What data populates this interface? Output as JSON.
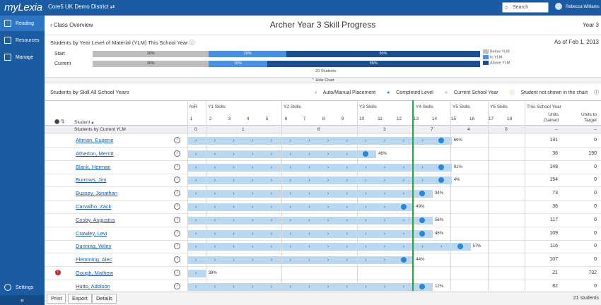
{
  "topbar": {
    "logo": "myLexia",
    "district": "Core5 UK Demo District ⇄",
    "search": "Search",
    "user": "Rebecca Williams"
  },
  "sidebar": {
    "items": [
      {
        "label": "Reading"
      },
      {
        "label": "Resources"
      },
      {
        "label": "Manage"
      }
    ],
    "settings": "Settings",
    "collapse": "«"
  },
  "header": {
    "back": "Class Overview",
    "title": "Archer Year 3 Skill Progress",
    "year": "Year 3"
  },
  "ylm": {
    "title": "Students by Year Level of Material (YLM) This School Year",
    "as_of": "As of Feb 1, 2013",
    "rows": [
      {
        "label": "Start",
        "below": "30%",
        "in": "20%",
        "above": "50%",
        "below_v": 30,
        "in_v": 20,
        "above_v": 50
      },
      {
        "label": "Current",
        "below": "30%",
        "in": "15%",
        "above": "55%",
        "below_v": 30,
        "in_v": 15,
        "above_v": 55
      }
    ],
    "legend": [
      "Below YLM",
      "In YLM",
      "Above YLM"
    ],
    "students": "20 Students",
    "hide": "Hide Chart"
  },
  "skills": {
    "title": "Students by Skill All School Years",
    "legend": [
      "Auto/Manual Placement",
      "Completed Level",
      "Current School Year",
      "Student not shown in the chart"
    ],
    "headers": {
      "nr": "N/R",
      "student": "Student",
      "this_year": "This School Year",
      "units_gained": "Units Gained",
      "units_target": "Units to Target"
    },
    "groups": [
      "Y1 Skills",
      "Y2 Skills",
      "Y3 Skills",
      "Y4 Skills",
      "Y5 Skills",
      "Y6 Skills"
    ],
    "cols": [
      "1",
      "2",
      "3",
      "4",
      "5",
      "6",
      "7",
      "8",
      "9",
      "10",
      "11",
      "12",
      "13",
      "14",
      "15",
      "16",
      "17",
      "18"
    ],
    "cym": {
      "label": "Students by Current YLM",
      "vals": [
        "0",
        "1",
        "6",
        "3",
        "7",
        "4",
        "0"
      ],
      "gained": "--",
      "target": "--"
    }
  },
  "students": [
    {
      "name": "Altman, Eugene",
      "pct": "69%",
      "lvl": 14,
      "gained": "131",
      "target": "0"
    },
    {
      "name": "Atherton, Merritt",
      "pct": "46%",
      "lvl": 10,
      "gained": "36",
      "target": "190"
    },
    {
      "name": "Blank, Herman",
      "pct": "91%",
      "lvl": 14,
      "gained": "148",
      "target": "0"
    },
    {
      "name": "Burrows, Jim",
      "pct": "4%",
      "lvl": 14,
      "gained": "154",
      "target": "0"
    },
    {
      "name": "Bussey, Jonathan",
      "pct": "94%",
      "lvl": 13,
      "gained": "73",
      "target": "0"
    },
    {
      "name": "Carvalho, Zack",
      "pct": "49%",
      "lvl": 12,
      "gained": "36",
      "target": "0"
    },
    {
      "name": "Cosby, Augustus",
      "pct": "56%",
      "lvl": 13,
      "gained": "117",
      "target": "0"
    },
    {
      "name": "Crawley, Levi",
      "pct": "46%",
      "lvl": 13,
      "gained": "109",
      "target": "0"
    },
    {
      "name": "Dunning, Wiley",
      "pct": "57%",
      "lvl": 15,
      "gained": "116",
      "target": "0"
    },
    {
      "name": "Flemming, Alec",
      "pct": "44%",
      "lvl": 12,
      "gained": "107",
      "target": "0"
    },
    {
      "name": "Gough, Mathew",
      "pct": "39%",
      "lvl": 1,
      "gained": "21",
      "target": "732",
      "warn": "!"
    },
    {
      "name": "Hutto, Addison",
      "pct": "12%",
      "lvl": 13,
      "gained": "82",
      "target": "0"
    }
  ],
  "footer": {
    "print": "Print",
    "export": "Export",
    "details": "Details",
    "count": "21 students"
  },
  "colors": {
    "brand": "#1a5ba3",
    "below": "#bdbdbd",
    "in": "#4a90e2",
    "above": "#1f4e8f",
    "green": "#27a83b"
  }
}
